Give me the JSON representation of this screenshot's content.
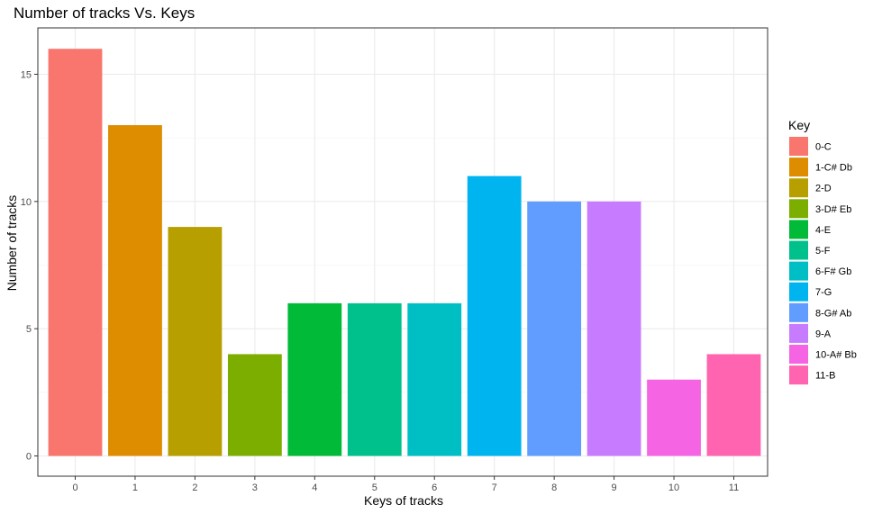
{
  "chart_data": {
    "type": "bar",
    "title": "Number of tracks Vs. Keys",
    "xlabel": "Keys of tracks",
    "ylabel": "Number of tracks",
    "categories": [
      "0",
      "1",
      "2",
      "3",
      "4",
      "5",
      "6",
      "7",
      "8",
      "9",
      "10",
      "11"
    ],
    "values": [
      16,
      13,
      9,
      4,
      6,
      6,
      6,
      11,
      10,
      10,
      3,
      4
    ],
    "colors": [
      "#F8766D",
      "#DE8C00",
      "#B79F00",
      "#7CAE00",
      "#00BA38",
      "#00C08B",
      "#00BFC4",
      "#00B4F0",
      "#619CFF",
      "#C77CFF",
      "#F564E3",
      "#FF64B0"
    ],
    "yticks": [
      0,
      5,
      10,
      15
    ],
    "ylim": [
      0,
      16.8
    ],
    "grid": true,
    "legend": {
      "title": "Key",
      "position": "right",
      "entries": [
        "0-C",
        "1-C# Db",
        "2-D",
        "3-D# Eb",
        "4-E",
        "5-F",
        "6-F# Gb",
        "7-G",
        "8-G# Ab",
        "9-A",
        "10-A# Bb",
        "11-B"
      ]
    }
  }
}
